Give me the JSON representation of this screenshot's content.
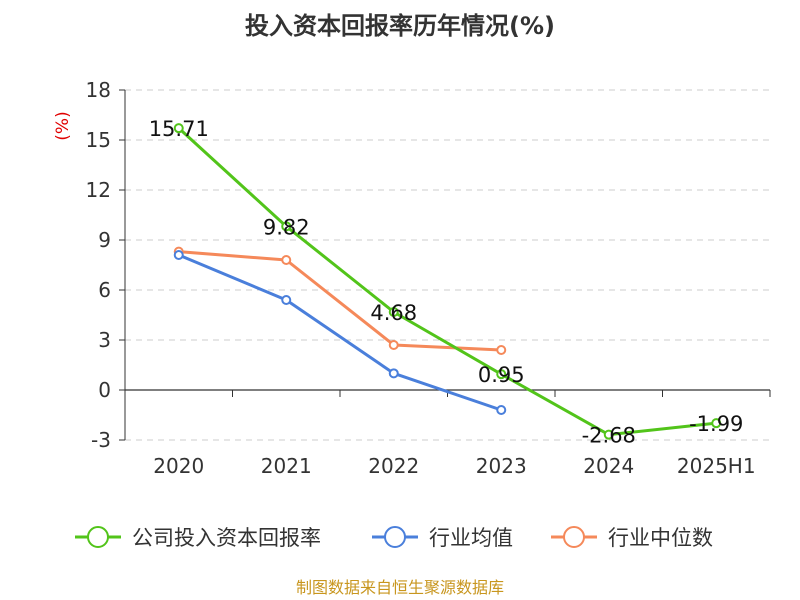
{
  "chart_data": {
    "type": "line",
    "title": "投入资本回报率历年情况(%)",
    "ylabel": "(%)",
    "xlabel": "",
    "categories": [
      "2020",
      "2021",
      "2022",
      "2023",
      "2024",
      "2025H1"
    ],
    "ylim": [
      -3,
      18
    ],
    "yticks": [
      18,
      15,
      12,
      9,
      6,
      3,
      0,
      -3
    ],
    "grid": true,
    "legend_position": "bottom",
    "series": [
      {
        "name": "公司投入资本回报率",
        "color": "#52c41a",
        "values": [
          15.71,
          9.82,
          4.68,
          0.95,
          -2.68,
          -1.99
        ],
        "labels": [
          "15.71",
          "9.82",
          "4.68",
          "0.95",
          "-2.68",
          "-1.99"
        ]
      },
      {
        "name": "行业均值",
        "color": "#4a7fdb",
        "values": [
          8.1,
          5.4,
          1.0,
          -1.2,
          null,
          null
        ]
      },
      {
        "name": "行业中位数",
        "color": "#f5895a",
        "values": [
          8.3,
          7.8,
          2.7,
          2.4,
          null,
          null
        ]
      }
    ]
  },
  "source": "制图数据来自恒生聚源数据库"
}
